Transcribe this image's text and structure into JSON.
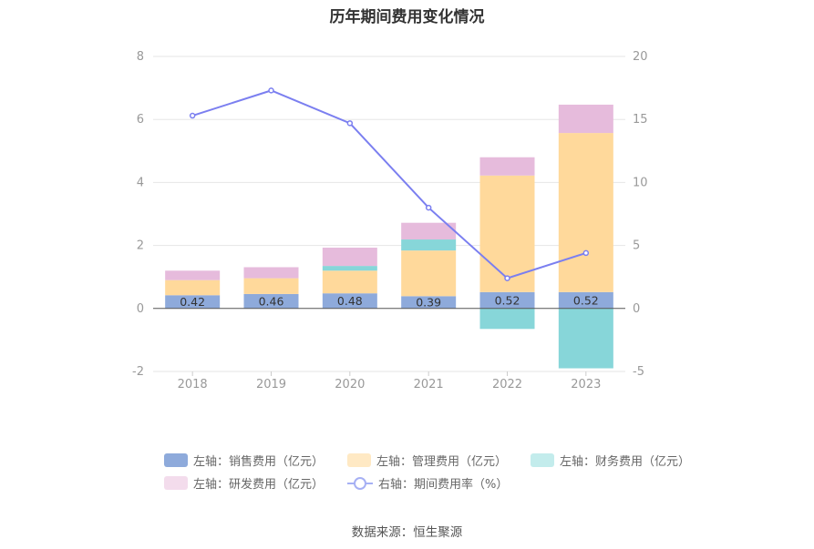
{
  "title": "历年期间费用变化情况",
  "source": "数据来源：恒生聚源",
  "colors": {
    "sales": "#8eaadb",
    "admin": "#ffd99b",
    "finance": "#87d6d9",
    "rd": "#e6bbdc",
    "rate": "#7b7ff0",
    "grid": "#e6e6e6",
    "axis": "#555555"
  },
  "legend": [
    {
      "label": "左轴：销售费用（亿元）",
      "icon": "box-swatch",
      "color": "#8eaadb"
    },
    {
      "label": "左轴：管理费用（亿元）",
      "icon": "box-swatch",
      "color": "#ffe9c4"
    },
    {
      "label": "左轴：财务费用（亿元）",
      "icon": "box-swatch",
      "color": "#c3ecec"
    },
    {
      "label": "左轴：研发费用（亿元）",
      "icon": "box-swatch",
      "color": "#f3dcec"
    },
    {
      "label": "右轴：期间费用率（%）",
      "icon": "line-circle-swatch",
      "color": "#a6b0f4"
    }
  ],
  "chart_data": {
    "type": "bar",
    "stacked": true,
    "categories": [
      "2018",
      "2019",
      "2020",
      "2021",
      "2022",
      "2023"
    ],
    "y_left": {
      "ticks": [
        "8",
        "6",
        "4",
        "2",
        "0",
        "-2"
      ],
      "ylim": [
        -2,
        8
      ]
    },
    "y_right": {
      "ticks": [
        "20",
        "15",
        "10",
        "5",
        "0",
        "-5"
      ],
      "ylim": [
        -5,
        20
      ]
    },
    "grid": true,
    "legend_position": "bottom",
    "series": [
      {
        "name": "左轴：销售费用（亿元）",
        "axis": "left",
        "values": [
          0.42,
          0.46,
          0.48,
          0.39,
          0.52,
          0.52
        ],
        "labels": [
          "0.42",
          "0.46",
          "0.48",
          "0.39",
          "0.52",
          "0.52"
        ]
      },
      {
        "name": "左轴：管理费用（亿元）",
        "axis": "left",
        "values": [
          0.48,
          0.5,
          0.72,
          1.45,
          3.7,
          5.05
        ]
      },
      {
        "name": "左轴：财务费用（亿元）",
        "axis": "left",
        "values": [
          0.0,
          0.0,
          0.15,
          0.35,
          -0.65,
          -1.9
        ]
      },
      {
        "name": "左轴：研发费用（亿元）",
        "axis": "left",
        "values": [
          0.3,
          0.35,
          0.58,
          0.53,
          0.58,
          0.9
        ]
      },
      {
        "name": "右轴：期间费用率（%）",
        "axis": "right",
        "type": "line",
        "values": [
          15.3,
          17.3,
          14.7,
          8.0,
          2.4,
          4.4
        ]
      }
    ]
  }
}
